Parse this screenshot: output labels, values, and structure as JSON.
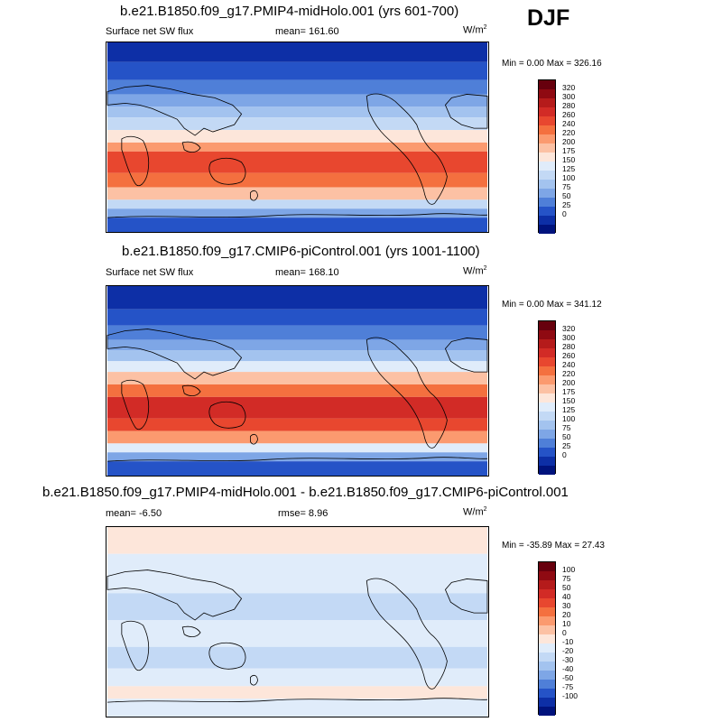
{
  "season": "DJF",
  "panels": [
    {
      "title": "b.e21.B1850.f09_g17.PMIP4-midHolo.001 (yrs 601-700)",
      "variable": "Surface net SW flux",
      "stat1": "mean= 161.60",
      "stat2": "",
      "units": "W/m",
      "units_exp": "2",
      "minmax": "Min =   0.00 Max = 326.16",
      "levels": [
        "320",
        "300",
        "280",
        "260",
        "240",
        "220",
        "200",
        "175",
        "150",
        "125",
        "100",
        "75",
        "50",
        "25",
        "0"
      ]
    },
    {
      "title": "b.e21.B1850.f09_g17.CMIP6-piControl.001 (yrs 1001-1100)",
      "variable": "Surface net SW flux",
      "stat1": "mean= 168.10",
      "stat2": "",
      "units": "W/m",
      "units_exp": "2",
      "minmax": "Min =   0.00 Max = 341.12",
      "levels": [
        "320",
        "300",
        "280",
        "260",
        "240",
        "220",
        "200",
        "175",
        "150",
        "125",
        "100",
        "75",
        "50",
        "25",
        "0"
      ]
    },
    {
      "title": "b.e21.B1850.f09_g17.PMIP4-midHolo.001 - b.e21.B1850.f09_g17.CMIP6-piControl.001",
      "variable": "",
      "stat1": "mean=  -6.50",
      "stat2": "rmse=   8.96",
      "units": "W/m",
      "units_exp": "2",
      "minmax": "Min = -35.89 Max =  27.43",
      "levels": [
        "100",
        "75",
        "50",
        "40",
        "30",
        "20",
        "10",
        "0",
        "-10",
        "-20",
        "-30",
        "-40",
        "-50",
        "-75",
        "-100"
      ]
    }
  ],
  "colors": {
    "scale": [
      "#67000d",
      "#8f0a12",
      "#b51b1b",
      "#d22b26",
      "#e8472f",
      "#f4703f",
      "#fb9a6f",
      "#fcc1a4",
      "#fde6da",
      "#e0ecfa",
      "#c3d9f5",
      "#a3c3ef",
      "#7ea6e6",
      "#4f7fd8",
      "#2553c7",
      "#0d2fa6",
      "#00137d"
    ]
  }
}
